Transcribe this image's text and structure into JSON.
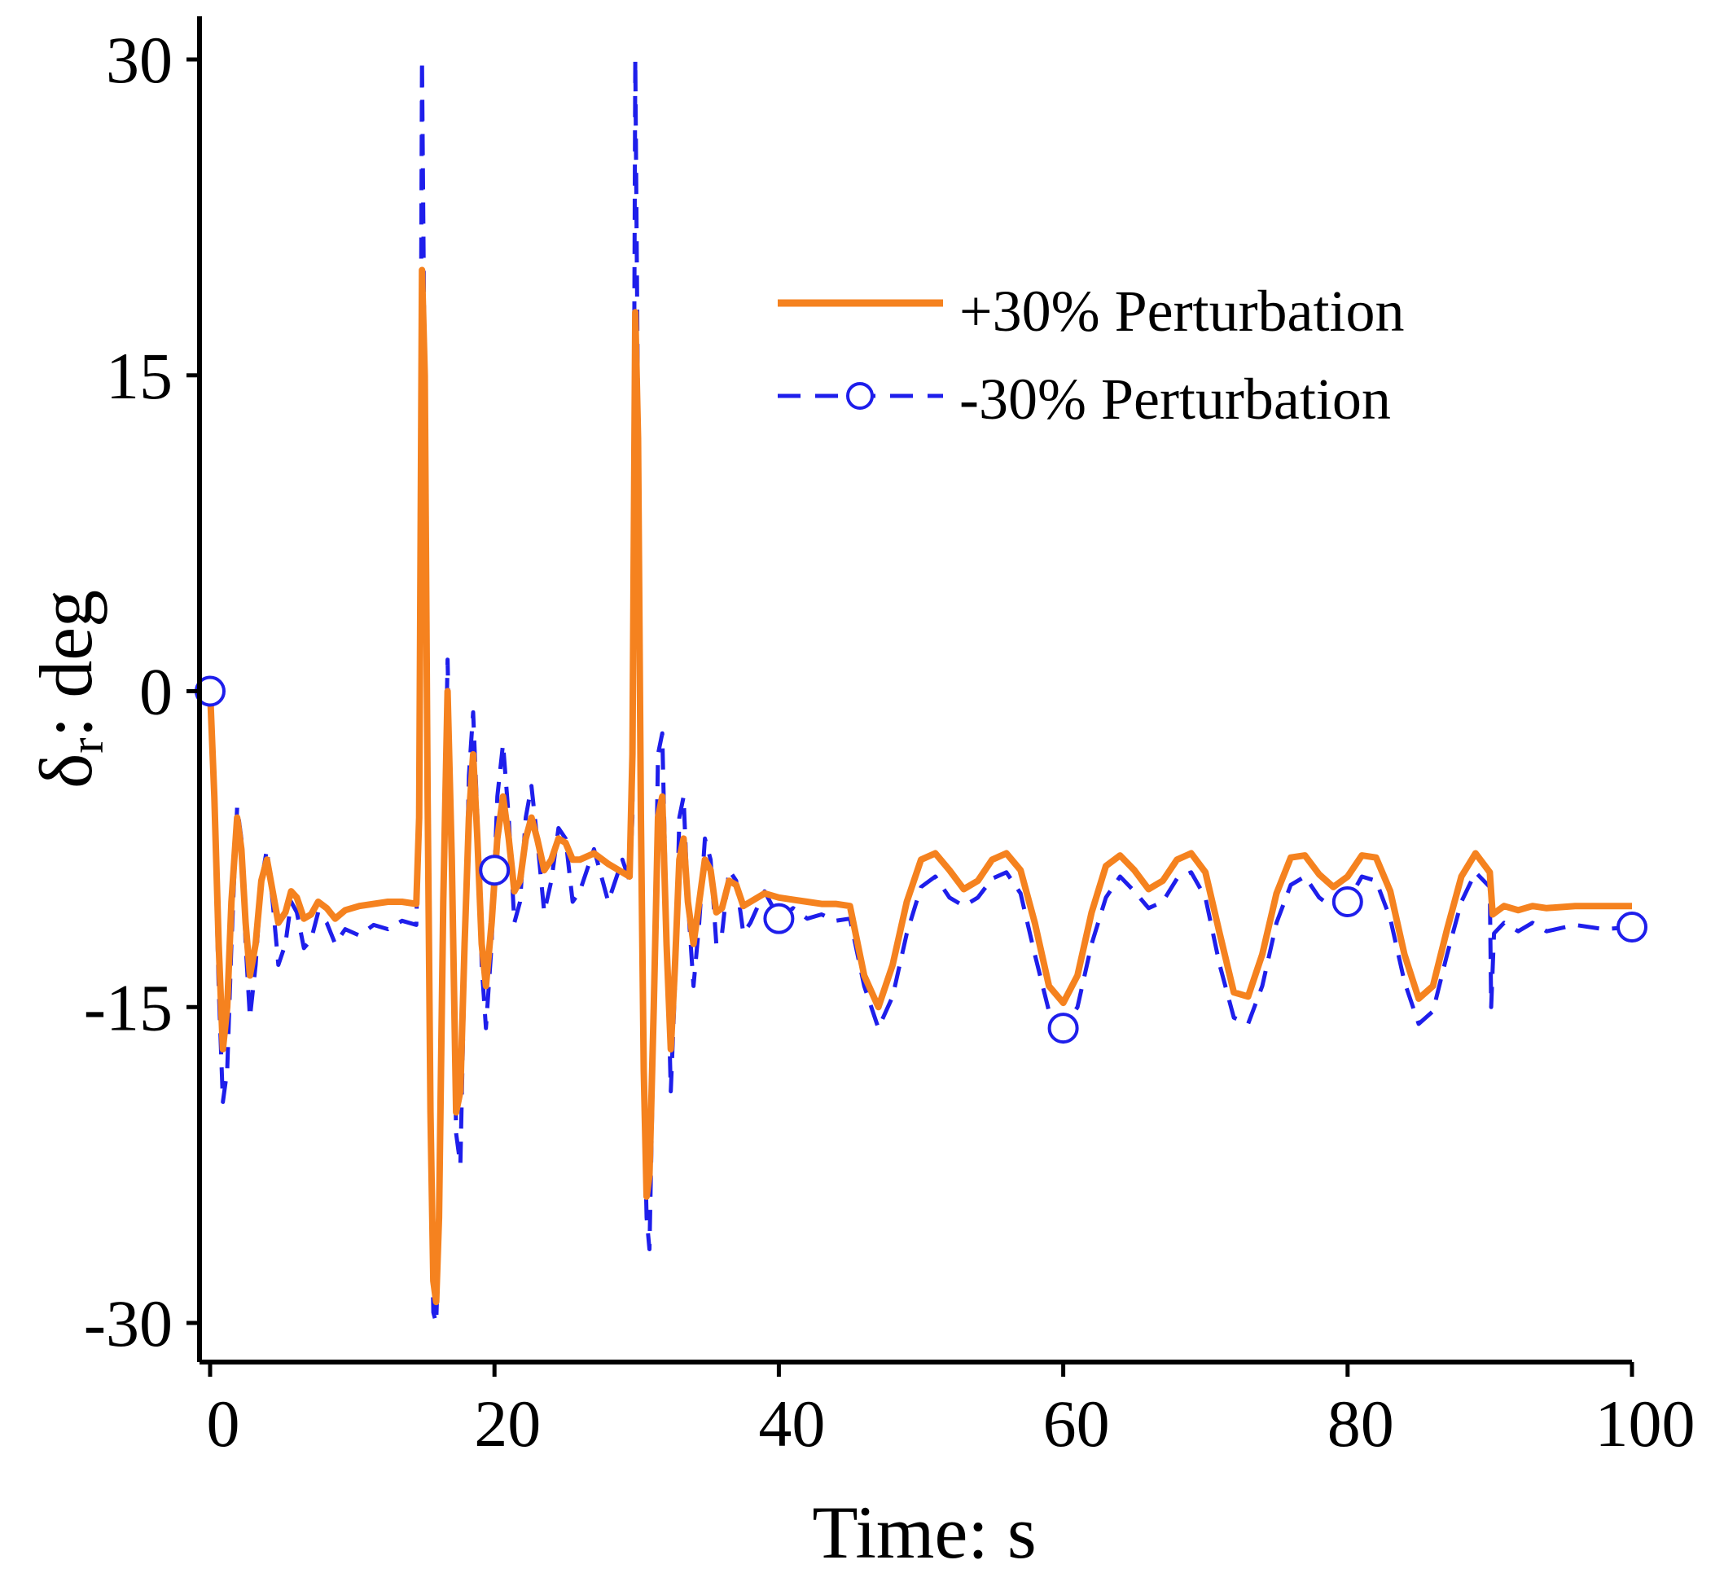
{
  "chart_data": {
    "type": "line",
    "xlabel": "Time: s",
    "ylabel_main": "δ",
    "ylabel_sub": "r",
    "ylabel_tail": ": deg",
    "xlim": [
      0,
      100
    ],
    "ylim": [
      -30,
      30
    ],
    "xticks": [
      0,
      20,
      40,
      60,
      80,
      100
    ],
    "yticks": [
      30,
      15,
      0,
      -15,
      -30
    ],
    "grid": false,
    "legend_position": "top-right",
    "series": [
      {
        "name": "+30% Perturbation",
        "color": "#F5821F",
        "style": "solid",
        "points": [
          [
            0,
            0
          ],
          [
            0.3,
            -5
          ],
          [
            0.6,
            -12
          ],
          [
            0.9,
            -17
          ],
          [
            1.2,
            -15
          ],
          [
            1.5,
            -10
          ],
          [
            1.9,
            -6
          ],
          [
            2.2,
            -7.5
          ],
          [
            2.5,
            -11
          ],
          [
            2.8,
            -13.5
          ],
          [
            3.2,
            -12
          ],
          [
            3.6,
            -9
          ],
          [
            4,
            -8
          ],
          [
            4.4,
            -9.5
          ],
          [
            4.8,
            -11
          ],
          [
            5.3,
            -10.5
          ],
          [
            5.7,
            -9.5
          ],
          [
            6.1,
            -9.8
          ],
          [
            6.6,
            -10.8
          ],
          [
            7.1,
            -10.6
          ],
          [
            7.6,
            -10
          ],
          [
            8.2,
            -10.3
          ],
          [
            8.8,
            -10.8
          ],
          [
            9.5,
            -10.4
          ],
          [
            10.5,
            -10.2
          ],
          [
            11.5,
            -10.1
          ],
          [
            12.5,
            -10
          ],
          [
            13.5,
            -10
          ],
          [
            14.5,
            -10.1
          ],
          [
            14.7,
            -6
          ],
          [
            14.9,
            20
          ],
          [
            15.1,
            15
          ],
          [
            15.3,
            -5
          ],
          [
            15.5,
            -20
          ],
          [
            15.7,
            -28
          ],
          [
            15.9,
            -29
          ],
          [
            16.1,
            -25
          ],
          [
            16.4,
            -10
          ],
          [
            16.7,
            0
          ],
          [
            17,
            -8
          ],
          [
            17.3,
            -20
          ],
          [
            17.6,
            -19
          ],
          [
            17.9,
            -12
          ],
          [
            18.2,
            -6
          ],
          [
            18.5,
            -3
          ],
          [
            18.8,
            -7
          ],
          [
            19.1,
            -12
          ],
          [
            19.4,
            -14
          ],
          [
            19.8,
            -11
          ],
          [
            20.2,
            -7
          ],
          [
            20.6,
            -5
          ],
          [
            21,
            -7
          ],
          [
            21.4,
            -9.5
          ],
          [
            21.8,
            -9
          ],
          [
            22.2,
            -7
          ],
          [
            22.6,
            -6
          ],
          [
            23,
            -7
          ],
          [
            23.5,
            -8.5
          ],
          [
            24,
            -8
          ],
          [
            24.5,
            -7
          ],
          [
            25,
            -7.2
          ],
          [
            25.5,
            -8
          ],
          [
            26,
            -8
          ],
          [
            27,
            -7.7
          ],
          [
            28,
            -8.2
          ],
          [
            29,
            -8.6
          ],
          [
            29.5,
            -8.8
          ],
          [
            29.7,
            -3
          ],
          [
            29.9,
            18
          ],
          [
            30.1,
            12
          ],
          [
            30.3,
            -6
          ],
          [
            30.5,
            -18
          ],
          [
            30.7,
            -24
          ],
          [
            30.9,
            -23
          ],
          [
            31.2,
            -15
          ],
          [
            31.5,
            -6
          ],
          [
            31.8,
            -5
          ],
          [
            32.1,
            -12
          ],
          [
            32.4,
            -17
          ],
          [
            32.7,
            -13
          ],
          [
            33,
            -8
          ],
          [
            33.3,
            -7
          ],
          [
            33.6,
            -10
          ],
          [
            34,
            -12
          ],
          [
            34.4,
            -10
          ],
          [
            34.8,
            -8
          ],
          [
            35.2,
            -8.5
          ],
          [
            35.6,
            -10.5
          ],
          [
            36,
            -10.3
          ],
          [
            36.5,
            -9
          ],
          [
            37,
            -9.2
          ],
          [
            37.5,
            -10.2
          ],
          [
            38,
            -10
          ],
          [
            39,
            -9.6
          ],
          [
            40,
            -9.8
          ],
          [
            41,
            -9.9
          ],
          [
            42,
            -10
          ],
          [
            43,
            -10.1
          ],
          [
            44,
            -10.1
          ],
          [
            45,
            -10.2
          ],
          [
            46,
            -13.5
          ],
          [
            47,
            -15
          ],
          [
            48,
            -13
          ],
          [
            49,
            -10
          ],
          [
            50,
            -8
          ],
          [
            51,
            -7.7
          ],
          [
            52,
            -8.5
          ],
          [
            53,
            -9.4
          ],
          [
            54,
            -9
          ],
          [
            55,
            -8
          ],
          [
            56,
            -7.7
          ],
          [
            57,
            -8.5
          ],
          [
            58,
            -11
          ],
          [
            59,
            -14
          ],
          [
            60,
            -14.8
          ],
          [
            61,
            -13.5
          ],
          [
            62,
            -10.5
          ],
          [
            63,
            -8.3
          ],
          [
            64,
            -7.8
          ],
          [
            65,
            -8.5
          ],
          [
            66,
            -9.4
          ],
          [
            67,
            -9
          ],
          [
            68,
            -8
          ],
          [
            69,
            -7.7
          ],
          [
            70,
            -8.6
          ],
          [
            71,
            -11.5
          ],
          [
            72,
            -14.3
          ],
          [
            73,
            -14.5
          ],
          [
            74,
            -12.5
          ],
          [
            75,
            -9.6
          ],
          [
            76,
            -7.9
          ],
          [
            77,
            -7.8
          ],
          [
            78,
            -8.7
          ],
          [
            79,
            -9.3
          ],
          [
            80,
            -8.8
          ],
          [
            81,
            -7.8
          ],
          [
            82,
            -7.9
          ],
          [
            83,
            -9.5
          ],
          [
            84,
            -12.5
          ],
          [
            85,
            -14.6
          ],
          [
            86,
            -14
          ],
          [
            87,
            -11.3
          ],
          [
            88,
            -8.8
          ],
          [
            89,
            -7.7
          ],
          [
            90,
            -8.6
          ],
          [
            90.2,
            -10.6
          ],
          [
            91,
            -10.2
          ],
          [
            92,
            -10.4
          ],
          [
            93,
            -10.2
          ],
          [
            94,
            -10.3
          ],
          [
            96,
            -10.2
          ],
          [
            98,
            -10.2
          ],
          [
            100,
            -10.2
          ]
        ]
      },
      {
        "name": "-30% Perturbation",
        "color": "#1E1EEB",
        "style": "dashed",
        "marker": "circle-open",
        "markers_at": [
          0,
          20,
          40,
          60,
          80,
          100
        ],
        "points": [
          [
            0,
            0
          ],
          [
            0.3,
            -6
          ],
          [
            0.6,
            -14
          ],
          [
            0.9,
            -19.5
          ],
          [
            1.2,
            -18
          ],
          [
            1.5,
            -12
          ],
          [
            1.9,
            -5.5
          ],
          [
            2.2,
            -7
          ],
          [
            2.5,
            -12
          ],
          [
            2.8,
            -15.5
          ],
          [
            3.2,
            -13
          ],
          [
            3.6,
            -9
          ],
          [
            4,
            -7.5
          ],
          [
            4.4,
            -10
          ],
          [
            4.8,
            -13
          ],
          [
            5.3,
            -12
          ],
          [
            5.7,
            -10
          ],
          [
            6.1,
            -10.5
          ],
          [
            6.6,
            -12.2
          ],
          [
            7.1,
            -11.8
          ],
          [
            7.6,
            -10.5
          ],
          [
            8.2,
            -11
          ],
          [
            8.8,
            -12
          ],
          [
            9.5,
            -11.3
          ],
          [
            10.5,
            -11.6
          ],
          [
            11.5,
            -11.1
          ],
          [
            12.5,
            -11.3
          ],
          [
            13.5,
            -10.9
          ],
          [
            14.5,
            -11.1
          ],
          [
            14.7,
            -5
          ],
          [
            14.9,
            30
          ],
          [
            15.1,
            14
          ],
          [
            15.3,
            -4
          ],
          [
            15.5,
            -22
          ],
          [
            15.7,
            -29.5
          ],
          [
            15.9,
            -30
          ],
          [
            16.1,
            -26
          ],
          [
            16.4,
            -10
          ],
          [
            16.7,
            1.5
          ],
          [
            17,
            -8
          ],
          [
            17.3,
            -21
          ],
          [
            17.6,
            -22.5
          ],
          [
            17.9,
            -13
          ],
          [
            18.2,
            -4
          ],
          [
            18.5,
            -1
          ],
          [
            18.8,
            -6
          ],
          [
            19.1,
            -13
          ],
          [
            19.4,
            -16
          ],
          [
            19.8,
            -12
          ],
          [
            20.2,
            -5
          ],
          [
            20.6,
            -2.5
          ],
          [
            21,
            -6
          ],
          [
            21.4,
            -11
          ],
          [
            21.8,
            -10
          ],
          [
            22.2,
            -6
          ],
          [
            22.6,
            -4.5
          ],
          [
            23,
            -7
          ],
          [
            23.5,
            -10.5
          ],
          [
            24,
            -9
          ],
          [
            24.5,
            -6.5
          ],
          [
            25,
            -7
          ],
          [
            25.5,
            -10
          ],
          [
            26,
            -9.5
          ],
          [
            27,
            -7.5
          ],
          [
            28,
            -10
          ],
          [
            29,
            -8
          ],
          [
            29.5,
            -9
          ],
          [
            29.7,
            -6
          ],
          [
            29.9,
            30
          ],
          [
            30.1,
            13
          ],
          [
            30.3,
            -5
          ],
          [
            30.5,
            -19
          ],
          [
            30.7,
            -25
          ],
          [
            30.9,
            -26.5
          ],
          [
            31.2,
            -16
          ],
          [
            31.5,
            -3
          ],
          [
            31.8,
            -2
          ],
          [
            32.1,
            -11
          ],
          [
            32.4,
            -19
          ],
          [
            32.7,
            -14
          ],
          [
            33,
            -6
          ],
          [
            33.3,
            -5
          ],
          [
            33.6,
            -10
          ],
          [
            34,
            -14
          ],
          [
            34.4,
            -11
          ],
          [
            34.8,
            -7
          ],
          [
            35.2,
            -8
          ],
          [
            35.6,
            -12
          ],
          [
            36,
            -11.5
          ],
          [
            36.5,
            -8.5
          ],
          [
            37,
            -9
          ],
          [
            37.5,
            -11.5
          ],
          [
            38,
            -11
          ],
          [
            39,
            -9.5
          ],
          [
            40,
            -10.8
          ],
          [
            41,
            -10.3
          ],
          [
            42,
            -10.8
          ],
          [
            43,
            -10.6
          ],
          [
            44,
            -10.9
          ],
          [
            45,
            -10.8
          ],
          [
            46,
            -14
          ],
          [
            47,
            -16
          ],
          [
            48,
            -14.5
          ],
          [
            49,
            -11.5
          ],
          [
            50,
            -9.3
          ],
          [
            51,
            -8.8
          ],
          [
            52,
            -9.8
          ],
          [
            53,
            -10.2
          ],
          [
            54,
            -9.8
          ],
          [
            55,
            -8.9
          ],
          [
            56,
            -8.6
          ],
          [
            57,
            -9.6
          ],
          [
            58,
            -12.5
          ],
          [
            59,
            -15.2
          ],
          [
            60,
            -16
          ],
          [
            61,
            -15
          ],
          [
            62,
            -12
          ],
          [
            63,
            -9.8
          ],
          [
            64,
            -8.8
          ],
          [
            65,
            -9.5
          ],
          [
            66,
            -10.3
          ],
          [
            67,
            -10
          ],
          [
            68,
            -8.9
          ],
          [
            69,
            -8.6
          ],
          [
            70,
            -9.8
          ],
          [
            71,
            -13
          ],
          [
            72,
            -15.5
          ],
          [
            73,
            -15.8
          ],
          [
            74,
            -14
          ],
          [
            75,
            -11
          ],
          [
            76,
            -9.2
          ],
          [
            77,
            -8.8
          ],
          [
            78,
            -9.8
          ],
          [
            79,
            -10.3
          ],
          [
            80,
            -10
          ],
          [
            81,
            -8.8
          ],
          [
            82,
            -9
          ],
          [
            83,
            -10.8
          ],
          [
            84,
            -13.8
          ],
          [
            85,
            -15.8
          ],
          [
            86,
            -15.2
          ],
          [
            87,
            -12.5
          ],
          [
            88,
            -10
          ],
          [
            89,
            -8.6
          ],
          [
            90,
            -9.3
          ],
          [
            90.1,
            -15
          ],
          [
            90.3,
            -11.5
          ],
          [
            91,
            -11
          ],
          [
            92,
            -11.4
          ],
          [
            93,
            -11
          ],
          [
            94,
            -11.4
          ],
          [
            96,
            -11.1
          ],
          [
            98,
            -11.3
          ],
          [
            100,
            -11.2
          ]
        ]
      }
    ]
  }
}
